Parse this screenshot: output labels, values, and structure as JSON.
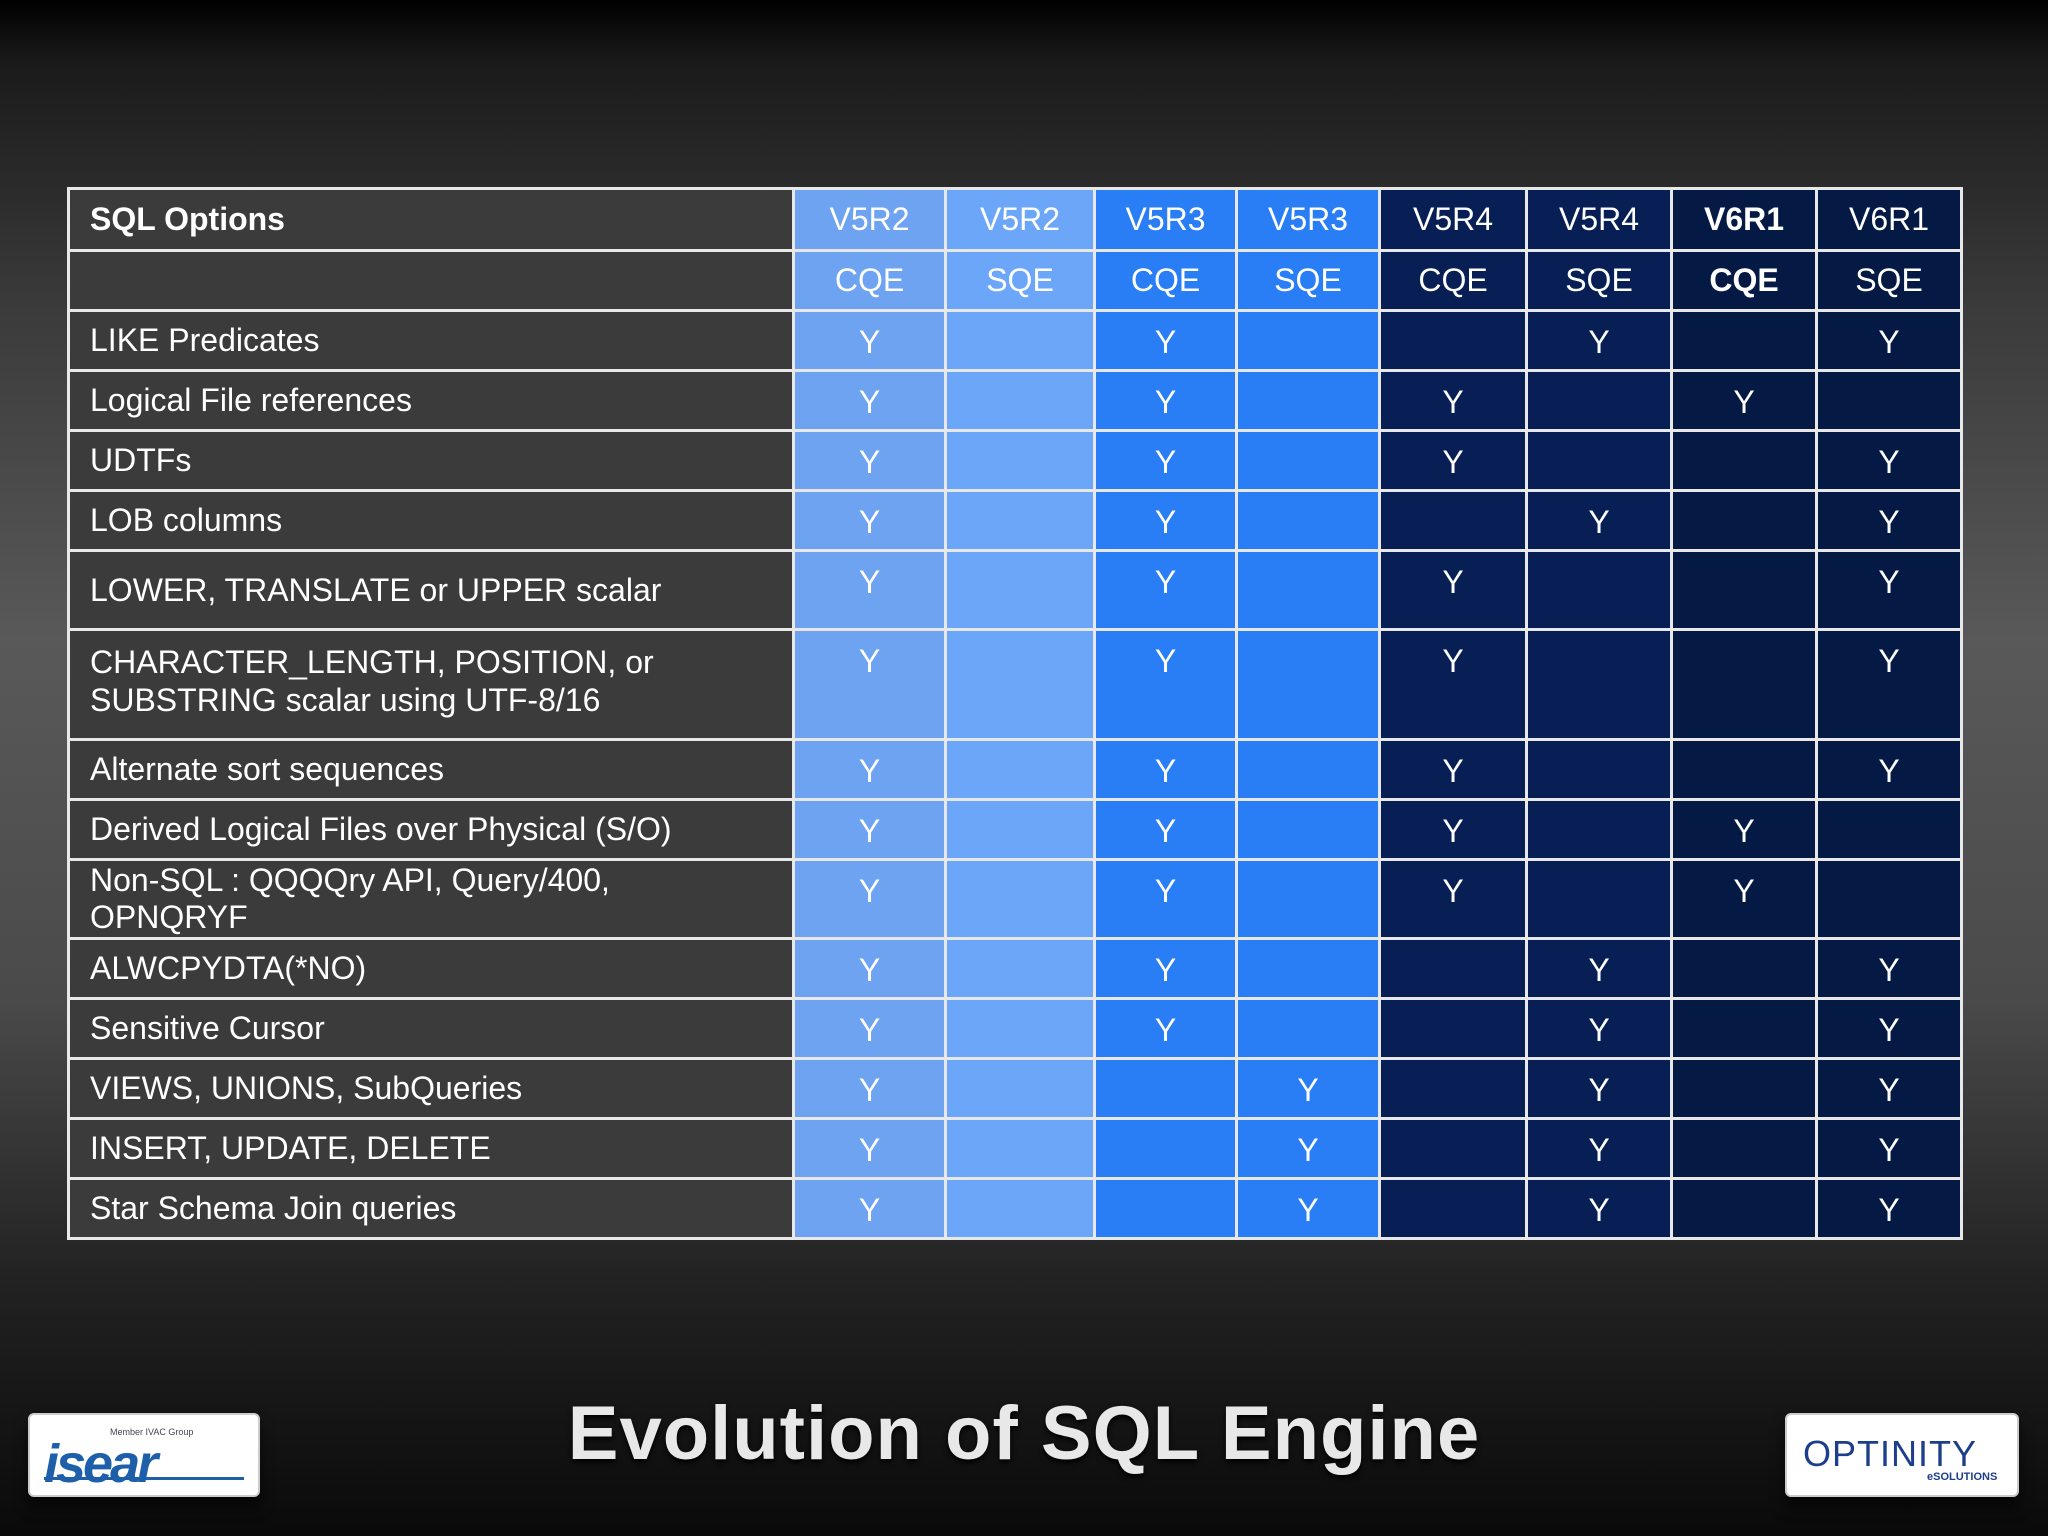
{
  "table": {
    "header_label": "SQL  Options",
    "columns": [
      {
        "release": "V5R2",
        "engine": "CQE",
        "color": "#6ea3f2",
        "emphasis": false
      },
      {
        "release": "V5R2",
        "engine": "SQE",
        "color": "#6ba6f8",
        "emphasis": false
      },
      {
        "release": "V5R3",
        "engine": "CQE",
        "color": "#2a7ef5",
        "emphasis": false
      },
      {
        "release": "V5R3",
        "engine": "SQE",
        "color": "#2a7ef5",
        "emphasis": false
      },
      {
        "release": "V5R4",
        "engine": "CQE",
        "color": "#071f55",
        "emphasis": false
      },
      {
        "release": "V5R4",
        "engine": "SQE",
        "color": "#071f55",
        "emphasis": false
      },
      {
        "release": "V6R1",
        "engine": "CQE",
        "color": "#041a45",
        "emphasis": true
      },
      {
        "release": "V6R1",
        "engine": "SQE",
        "color": "#041a45",
        "emphasis": false
      }
    ],
    "rows": [
      {
        "option": [
          "LIKE Predicates"
        ],
        "values": [
          "Y",
          "",
          "Y",
          "",
          "",
          "Y",
          "",
          "Y"
        ]
      },
      {
        "option": [
          "Logical File references"
        ],
        "values": [
          "Y",
          "",
          "Y",
          "",
          "Y",
          "",
          "Y",
          ""
        ]
      },
      {
        "option": [
          "UDTFs"
        ],
        "values": [
          "Y",
          "",
          "Y",
          "",
          "Y",
          "",
          "",
          "Y"
        ]
      },
      {
        "option": [
          "LOB columns"
        ],
        "values": [
          "Y",
          "",
          "Y",
          "",
          "",
          "Y",
          "",
          "Y"
        ]
      },
      {
        "option": [
          "LOWER, TRANSLATE or UPPER scalar"
        ],
        "values": [
          "Y",
          "",
          "Y",
          "",
          "Y",
          "",
          "",
          "Y"
        ]
      },
      {
        "option": [
          "CHARACTER_LENGTH, POSITION, or",
          "SUBSTRING scalar  using UTF-8/16"
        ],
        "values": [
          "Y",
          "",
          "Y",
          "",
          "Y",
          "",
          "",
          "Y"
        ]
      },
      {
        "option": [
          "Alternate sort sequences"
        ],
        "values": [
          "Y",
          "",
          "Y",
          "",
          "Y",
          "",
          "",
          "Y"
        ]
      },
      {
        "option": [
          "Derived Logical Files over Physical (S/O)"
        ],
        "values": [
          "Y",
          "",
          "Y",
          "",
          "Y",
          "",
          "Y",
          ""
        ]
      },
      {
        "option": [
          "Non-SQL : QQQQry API, Query/400, OPNQRYF"
        ],
        "values": [
          "Y",
          "",
          "Y",
          "",
          "Y",
          "",
          "Y",
          ""
        ]
      },
      {
        "option": [
          "ALWCPYDTA(*NO)"
        ],
        "values": [
          "Y",
          "",
          "Y",
          "",
          "",
          "Y",
          "",
          "Y"
        ]
      },
      {
        "option": [
          "Sensitive Cursor"
        ],
        "values": [
          "Y",
          "",
          "Y",
          "",
          "",
          "Y",
          "",
          "Y"
        ]
      },
      {
        "option": [
          "VIEWS, UNIONS, SubQueries"
        ],
        "values": [
          "Y",
          "",
          "",
          "Y",
          "",
          "Y",
          "",
          "Y"
        ]
      },
      {
        "option": [
          "INSERT, UPDATE, DELETE"
        ],
        "values": [
          "Y",
          "",
          "",
          "Y",
          "",
          "Y",
          "",
          "Y"
        ]
      },
      {
        "option": [
          "Star Schema Join queries"
        ],
        "values": [
          "Y",
          "",
          "",
          "Y",
          "",
          "Y",
          "",
          "Y"
        ]
      }
    ]
  },
  "title": "Evolution of SQL Engine",
  "logos": {
    "left": {
      "tagline": "Member IVAC Group",
      "wordmark": "isear"
    },
    "right": {
      "wordmark": "OPTINITY",
      "subtitle": "eSOLUTIONS"
    }
  }
}
